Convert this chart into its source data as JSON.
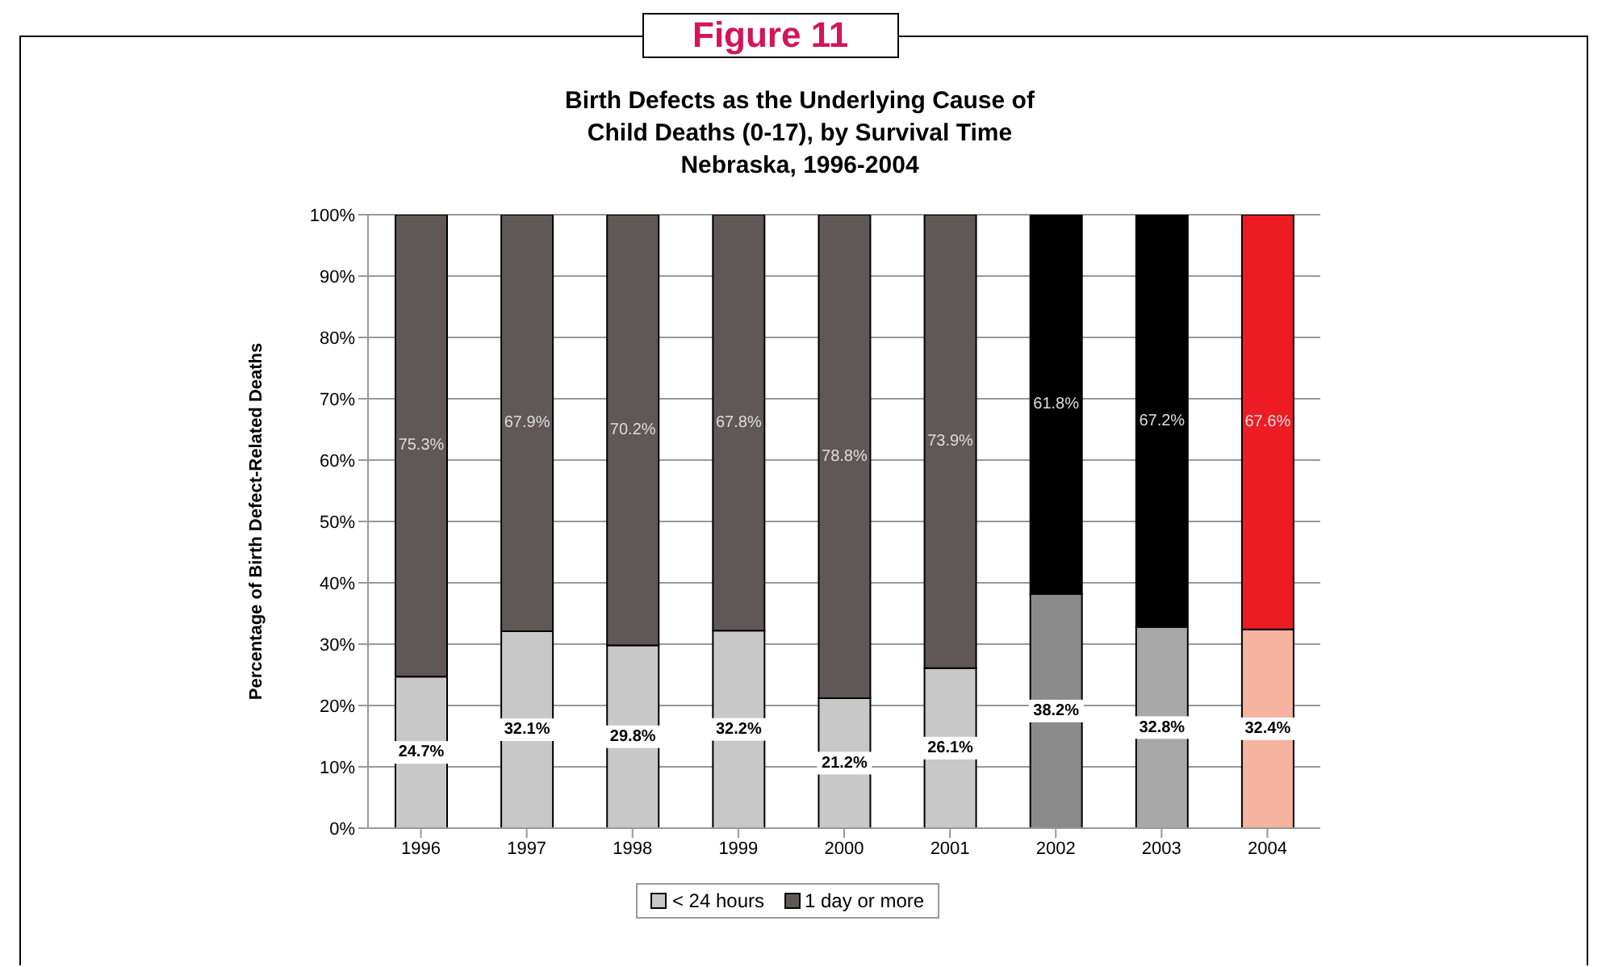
{
  "chart_data": {
    "type": "bar",
    "stacked": true,
    "title": "Birth Defects as the Underlying Cause of\nChild Deaths (0-17), by Survival Time\nNebraska, 1996-2004",
    "annotations": [
      "Figure 11"
    ],
    "ylabel": "Percentage of Birth Defect-Related Deaths",
    "categories": [
      "1996",
      "1997",
      "1998",
      "1999",
      "2000",
      "2001",
      "2002",
      "2003",
      "2004"
    ],
    "series": [
      {
        "name": "< 24 hours",
        "color": "#c8c8c8",
        "colors": [
          "#c8c8c8",
          "#c8c8c8",
          "#c8c8c8",
          "#c8c8c8",
          "#c8c8c8",
          "#c8c8c8",
          "#8a8a8a",
          "#a8a8a8",
          "#f6b3a0"
        ],
        "values": [
          24.7,
          32.1,
          29.8,
          32.2,
          21.2,
          26.1,
          38.2,
          32.8,
          32.4
        ],
        "value_labels": [
          "24.7%",
          "32.1%",
          "29.8%",
          "32.2%",
          "21.2%",
          "26.1%",
          "38.2%",
          "32.8%",
          "32.4%"
        ]
      },
      {
        "name": "1 day or more",
        "color": "#5f5856",
        "colors": [
          "#5f5856",
          "#5f5856",
          "#5f5856",
          "#5f5856",
          "#5f5856",
          "#5f5856",
          "#000000",
          "#000000",
          "#ed1c24"
        ],
        "values": [
          75.3,
          67.9,
          70.2,
          67.8,
          78.8,
          73.9,
          61.8,
          67.2,
          67.6
        ],
        "value_labels": [
          "75.3%",
          "67.9%",
          "70.2%",
          "67.8%",
          "78.8%",
          "73.9%",
          "61.8%",
          "67.2%",
          "67.6%"
        ]
      }
    ],
    "ylim": [
      0,
      100
    ],
    "yticks": [
      {
        "value": 0,
        "label": "0%"
      },
      {
        "value": 10,
        "label": "10%"
      },
      {
        "value": 20,
        "label": "20%"
      },
      {
        "value": 30,
        "label": "30%"
      },
      {
        "value": 40,
        "label": "40%"
      },
      {
        "value": 50,
        "label": "50%"
      },
      {
        "value": 60,
        "label": "60%"
      },
      {
        "value": 70,
        "label": "70%"
      },
      {
        "value": 80,
        "label": "80%"
      },
      {
        "value": 90,
        "label": "90%"
      },
      {
        "value": 100,
        "label": "100%"
      }
    ],
    "grid": "y",
    "legend": "bottom"
  }
}
